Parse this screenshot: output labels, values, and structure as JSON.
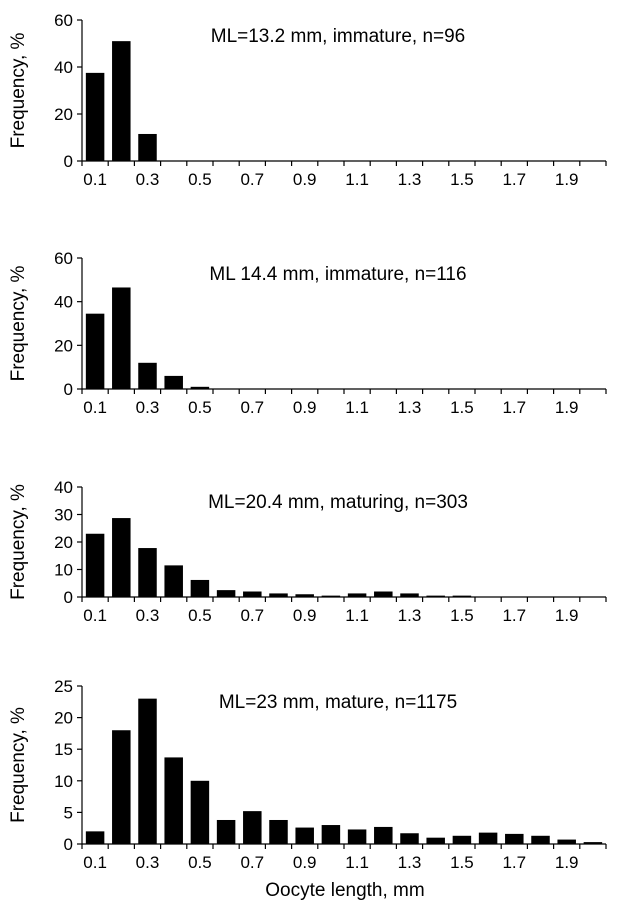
{
  "figure": {
    "xlabel": "Oocyte length, mm"
  },
  "chart_data": [
    {
      "type": "bar",
      "title": "ML=13.2 mm, immature, n=96",
      "ylabel": "Frequency, %",
      "xlabel": "",
      "ylim": [
        0,
        60
      ],
      "yticks": [
        0,
        20,
        40,
        60
      ],
      "tick_labels": [
        "0.1",
        "0.3",
        "0.5",
        "0.7",
        "0.9",
        "1.1",
        "1.3",
        "1.5",
        "1.7",
        "1.9"
      ],
      "categories": [
        0.1,
        0.2,
        0.3,
        0.4,
        0.5,
        0.6,
        0.7,
        0.8,
        0.9,
        1.0,
        1.1,
        1.2,
        1.3,
        1.4,
        1.5,
        1.6,
        1.7,
        1.8,
        1.9,
        2.0
      ],
      "values": [
        37.5,
        51,
        11.5,
        0,
        0,
        0,
        0,
        0,
        0,
        0,
        0,
        0,
        0,
        0,
        0,
        0,
        0,
        0,
        0,
        0
      ]
    },
    {
      "type": "bar",
      "title": "ML 14.4 mm, immature, n=116",
      "ylabel": "Frequency, %",
      "xlabel": "",
      "ylim": [
        0,
        60
      ],
      "yticks": [
        0,
        20,
        40,
        60
      ],
      "tick_labels": [
        "0.1",
        "0.3",
        "0.5",
        "0.7",
        "0.9",
        "1.1",
        "1.3",
        "1.5",
        "1.7",
        "1.9"
      ],
      "categories": [
        0.1,
        0.2,
        0.3,
        0.4,
        0.5,
        0.6,
        0.7,
        0.8,
        0.9,
        1.0,
        1.1,
        1.2,
        1.3,
        1.4,
        1.5,
        1.6,
        1.7,
        1.8,
        1.9,
        2.0
      ],
      "values": [
        34.5,
        46.5,
        12,
        6,
        1,
        0,
        0,
        0,
        0,
        0,
        0,
        0,
        0,
        0,
        0,
        0,
        0,
        0,
        0,
        0
      ]
    },
    {
      "type": "bar",
      "title": "ML=20.4 mm, maturing, n=303",
      "ylabel": "Frequency, %",
      "xlabel": "",
      "ylim": [
        0,
        40
      ],
      "yticks": [
        0,
        10,
        20,
        30,
        40
      ],
      "tick_labels": [
        "0.1",
        "0.3",
        "0.5",
        "0.7",
        "0.9",
        "1.1",
        "1.3",
        "1.5",
        "1.7",
        "1.9"
      ],
      "categories": [
        0.1,
        0.2,
        0.3,
        0.4,
        0.5,
        0.6,
        0.7,
        0.8,
        0.9,
        1.0,
        1.1,
        1.2,
        1.3,
        1.4,
        1.5,
        1.6,
        1.7,
        1.8,
        1.9,
        2.0
      ],
      "values": [
        23,
        28.7,
        17.8,
        11.5,
        6.2,
        2.5,
        2,
        1.3,
        1,
        0.5,
        1.3,
        2,
        1.3,
        0.5,
        0.5,
        0,
        0,
        0,
        0,
        0
      ]
    },
    {
      "type": "bar",
      "title": "ML=23 mm, mature, n=1175",
      "ylabel": "Frequency, %",
      "xlabel": "Oocyte length, mm",
      "ylim": [
        0,
        25
      ],
      "yticks": [
        0,
        5,
        10,
        15,
        20,
        25
      ],
      "tick_labels": [
        "0.1",
        "0.3",
        "0.5",
        "0.7",
        "0.9",
        "1.1",
        "1.3",
        "1.5",
        "1.7",
        "1.9"
      ],
      "categories": [
        0.1,
        0.2,
        0.3,
        0.4,
        0.5,
        0.6,
        0.7,
        0.8,
        0.9,
        1.0,
        1.1,
        1.2,
        1.3,
        1.4,
        1.5,
        1.6,
        1.7,
        1.8,
        1.9,
        2.0
      ],
      "values": [
        2,
        18,
        23,
        13.7,
        10,
        3.8,
        5.2,
        3.8,
        2.6,
        3,
        2.3,
        2.7,
        1.7,
        1,
        1.3,
        1.8,
        1.6,
        1.3,
        0.7,
        0.3
      ]
    }
  ]
}
